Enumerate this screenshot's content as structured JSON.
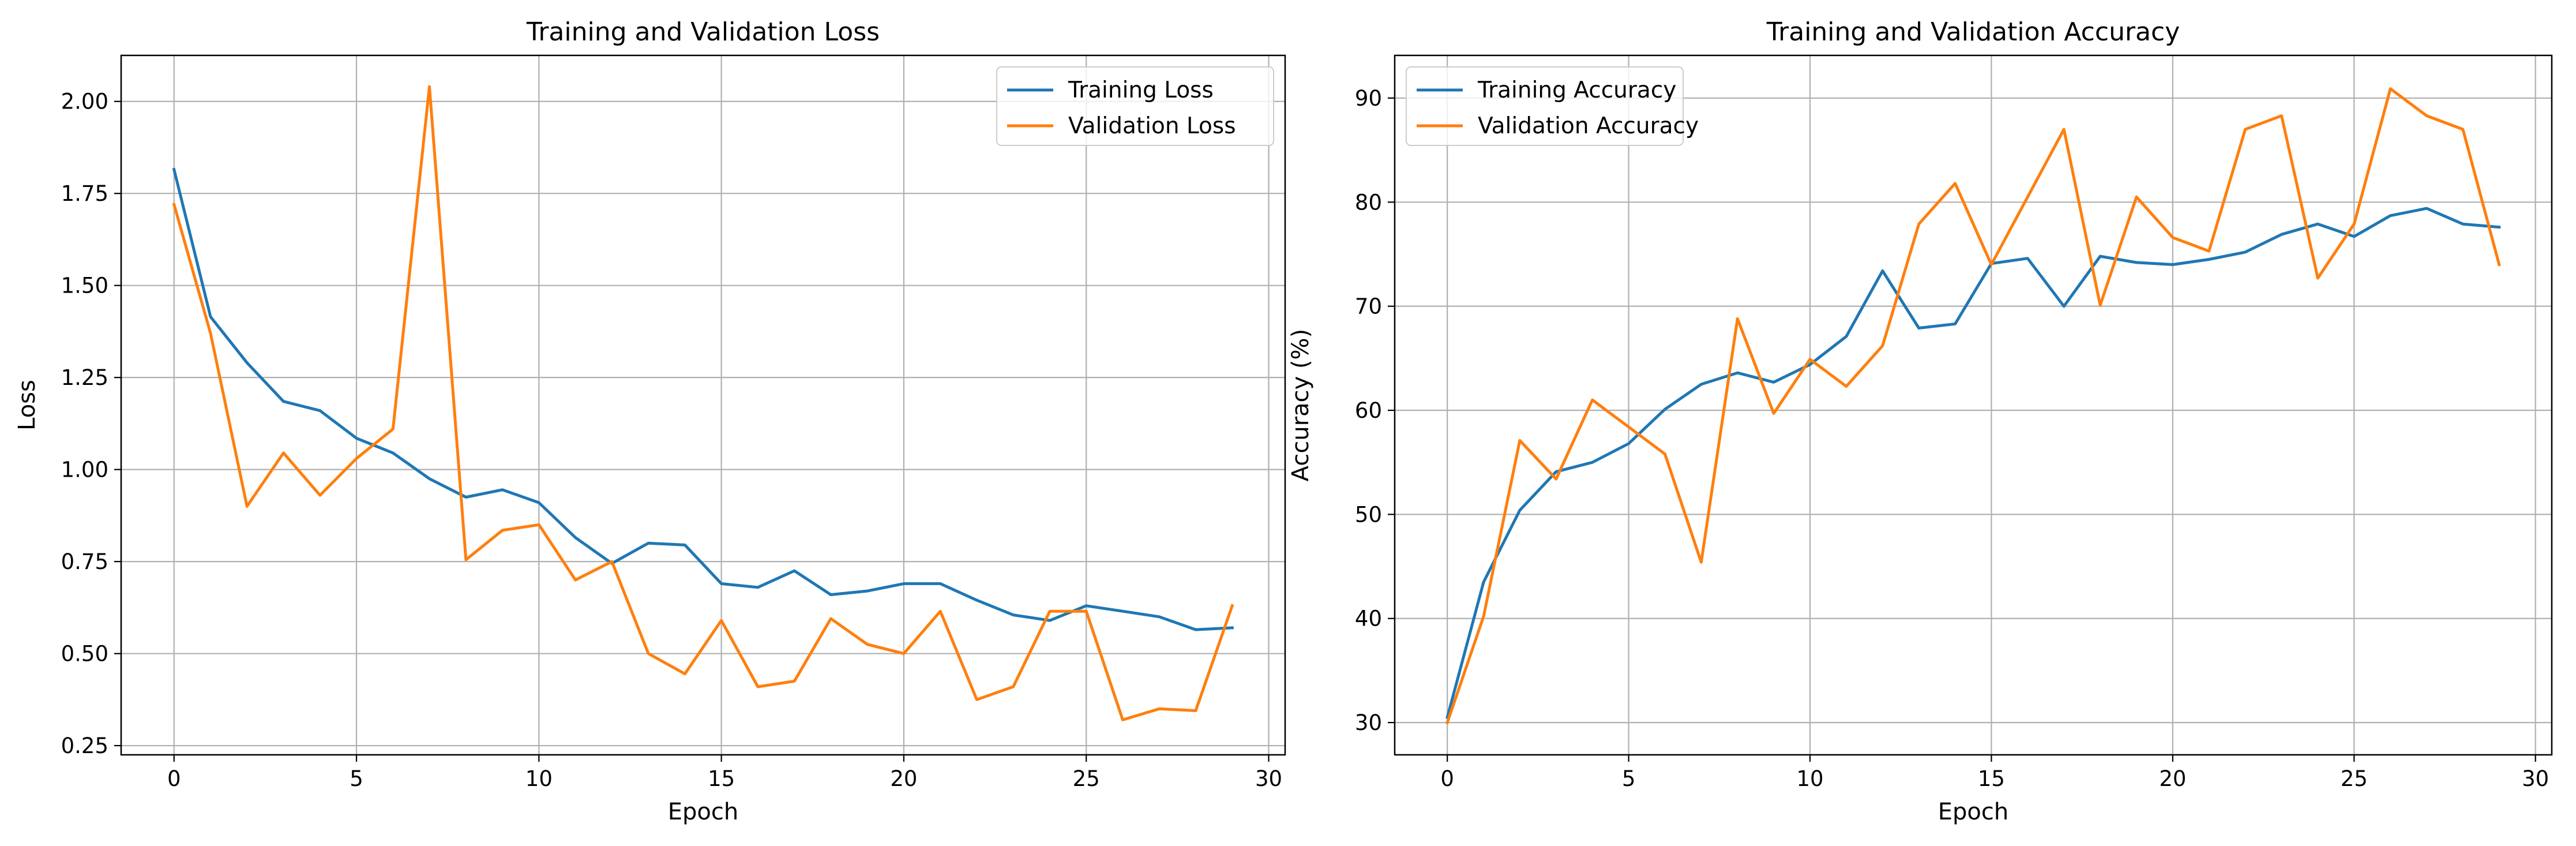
{
  "chart_data": [
    {
      "type": "line",
      "title": "Training and Validation Loss",
      "xlabel": "Epoch",
      "ylabel": "Loss",
      "xlim": [
        -1.45,
        30.45
      ],
      "ylim": [
        0.225,
        2.125
      ],
      "xticks": [
        0,
        5,
        10,
        15,
        20,
        25,
        30
      ],
      "xtick_labels": [
        "0",
        "5",
        "10",
        "15",
        "20",
        "25",
        "30"
      ],
      "yticks": [
        0.25,
        0.5,
        0.75,
        1.0,
        1.25,
        1.5,
        1.75,
        2.0
      ],
      "ytick_labels": [
        "0.25",
        "0.50",
        "0.75",
        "1.00",
        "1.25",
        "1.50",
        "1.75",
        "2.00"
      ],
      "grid": true,
      "legend_position": "upper right",
      "x": [
        0,
        1,
        2,
        3,
        4,
        5,
        6,
        7,
        8,
        9,
        10,
        11,
        12,
        13,
        14,
        15,
        16,
        17,
        18,
        19,
        20,
        21,
        22,
        23,
        24,
        25,
        26,
        27,
        28,
        29
      ],
      "series": [
        {
          "name": "Training Loss",
          "color": "#1f77b4",
          "values": [
            1.815,
            1.415,
            1.29,
            1.185,
            1.16,
            1.085,
            1.045,
            0.975,
            0.925,
            0.945,
            0.91,
            0.815,
            0.745,
            0.8,
            0.795,
            0.69,
            0.68,
            0.725,
            0.66,
            0.67,
            0.69,
            0.69,
            0.645,
            0.605,
            0.59,
            0.63,
            0.615,
            0.6,
            0.565,
            0.57
          ]
        },
        {
          "name": "Validation Loss",
          "color": "#ff7f0e",
          "values": [
            1.72,
            1.37,
            0.9,
            1.045,
            0.93,
            1.03,
            1.11,
            2.04,
            0.755,
            0.835,
            0.85,
            0.7,
            0.75,
            0.5,
            0.445,
            0.59,
            0.41,
            0.425,
            0.595,
            0.525,
            0.5,
            0.615,
            0.375,
            0.41,
            0.615,
            0.615,
            0.32,
            0.35,
            0.345,
            0.63
          ]
        }
      ]
    },
    {
      "type": "line",
      "title": "Training and Validation Accuracy",
      "xlabel": "Epoch",
      "ylabel": "Accuracy (%)",
      "xlim": [
        -1.45,
        30.45
      ],
      "ylim": [
        26.9,
        94.1
      ],
      "xticks": [
        0,
        5,
        10,
        15,
        20,
        25,
        30
      ],
      "xtick_labels": [
        "0",
        "5",
        "10",
        "15",
        "20",
        "25",
        "30"
      ],
      "yticks": [
        30,
        40,
        50,
        60,
        70,
        80,
        90
      ],
      "ytick_labels": [
        "30",
        "40",
        "50",
        "60",
        "70",
        "80",
        "90"
      ],
      "grid": true,
      "legend_position": "upper left",
      "x": [
        0,
        1,
        2,
        3,
        4,
        5,
        6,
        7,
        8,
        9,
        10,
        11,
        12,
        13,
        14,
        15,
        16,
        17,
        18,
        19,
        20,
        21,
        22,
        23,
        24,
        25,
        26,
        27,
        28,
        29
      ],
      "series": [
        {
          "name": "Training Accuracy",
          "color": "#1f77b4",
          "values": [
            30.5,
            43.5,
            50.4,
            54.1,
            55.0,
            56.8,
            60.1,
            62.5,
            63.6,
            62.7,
            64.4,
            67.1,
            73.4,
            67.9,
            68.3,
            74.1,
            74.6,
            70.0,
            74.8,
            74.2,
            74.0,
            74.5,
            75.2,
            76.9,
            77.9,
            76.7,
            78.7,
            79.4,
            77.9,
            77.6
          ]
        },
        {
          "name": "Validation Accuracy",
          "color": "#ff7f0e",
          "values": [
            30.0,
            40.2,
            57.1,
            53.4,
            61.0,
            58.4,
            55.8,
            45.4,
            68.8,
            59.7,
            64.9,
            62.3,
            66.2,
            77.9,
            81.8,
            74.0,
            80.5,
            87.0,
            70.1,
            80.5,
            76.6,
            75.3,
            87.0,
            88.3,
            72.7,
            77.9,
            90.9,
            88.3,
            87.0,
            74.0
          ]
        }
      ]
    }
  ]
}
